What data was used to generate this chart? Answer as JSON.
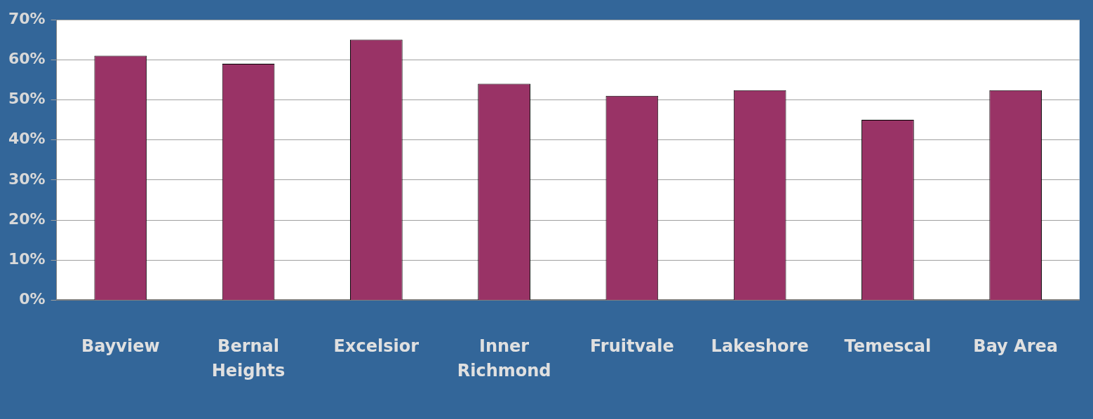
{
  "chart_data": {
    "type": "bar",
    "categories": [
      "Bayview",
      "Bernal Heights",
      "Excelsior",
      "Inner Richmond",
      "Fruitvale",
      "Lakeshore",
      "Temescal",
      "Bay Area"
    ],
    "values": [
      61,
      59,
      65,
      54,
      51,
      52.4,
      45,
      52.4
    ],
    "color": "#993366",
    "ylim": [
      0,
      70
    ],
    "yticks": [
      {
        "value": 0,
        "label": "0%"
      },
      {
        "value": 10,
        "label": "10%"
      },
      {
        "value": 20,
        "label": "20%"
      },
      {
        "value": 30,
        "label": "30%"
      },
      {
        "value": 40,
        "label": "40%"
      },
      {
        "value": 50,
        "label": "50%"
      },
      {
        "value": 60,
        "label": "60%"
      },
      {
        "value": 70,
        "label": "70%"
      }
    ],
    "grid": "y",
    "legend": false
  }
}
